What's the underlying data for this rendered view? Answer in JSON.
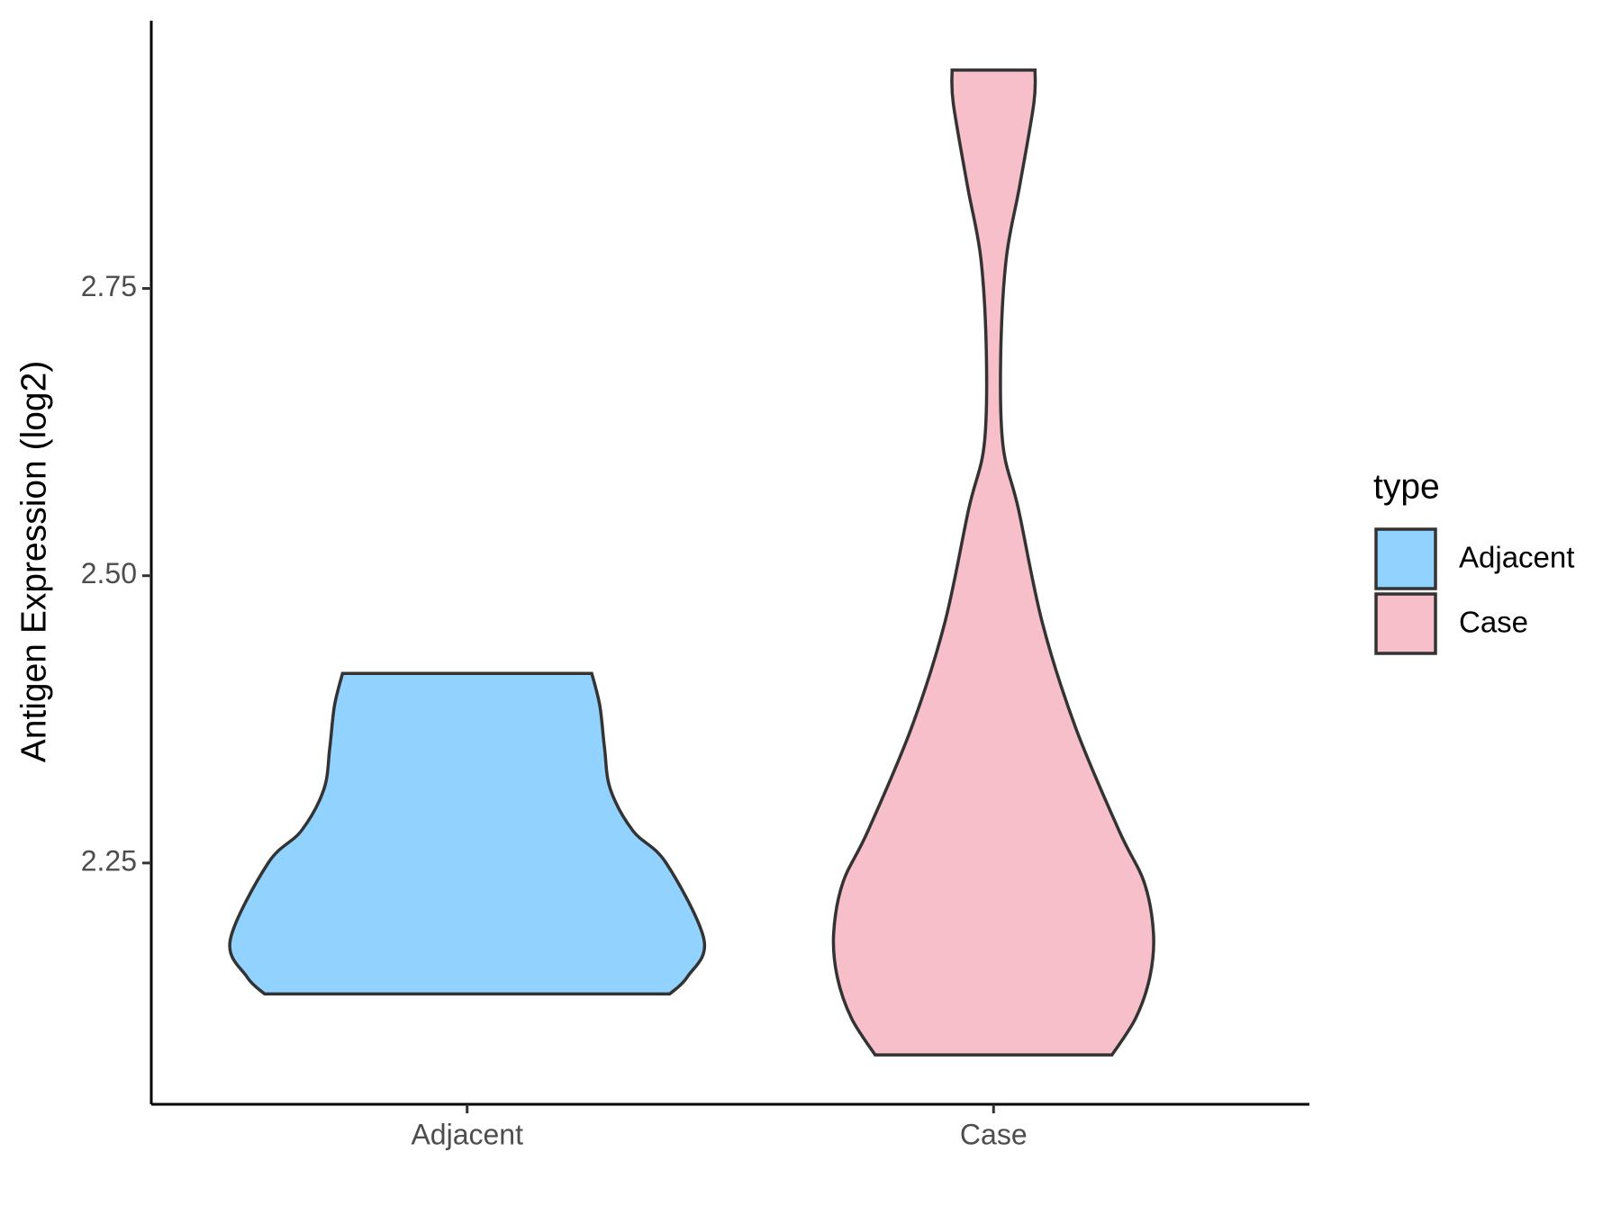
{
  "chart_data": {
    "type": "violin",
    "y_label": "Antigen Expression (log2)",
    "legend_title": "type",
    "legend_position": "right",
    "categories": [
      "Adjacent",
      "Case"
    ],
    "ylim": [
      2.04,
      2.983
    ],
    "yticks": [
      {
        "value": 2.25,
        "label": "2.25"
      },
      {
        "value": 2.5,
        "label": "2.50"
      },
      {
        "value": 2.75,
        "label": "2.75"
      }
    ],
    "series": [
      {
        "name": "Adjacent",
        "color": "#91d2fe",
        "y": [
          2.136,
          2.151,
          2.183,
          2.25,
          2.278,
          2.314,
          2.35,
          2.387,
          2.415
        ],
        "density": [
          0.855,
          0.93,
          1.0,
          0.84,
          0.7,
          0.605,
          0.58,
          0.56,
          0.526
        ]
      },
      {
        "name": "Case",
        "color": "#f7bfca",
        "y": [
          2.083,
          2.115,
          2.151,
          2.189,
          2.233,
          2.278,
          2.368,
          2.459,
          2.558,
          2.613,
          2.689,
          2.775,
          2.839,
          2.911,
          2.94
        ],
        "density": [
          0.5,
          0.6,
          0.66,
          0.675,
          0.636,
          0.53,
          0.346,
          0.206,
          0.105,
          0.04,
          0.03,
          0.053,
          0.11,
          0.17,
          0.175
        ]
      }
    ]
  }
}
